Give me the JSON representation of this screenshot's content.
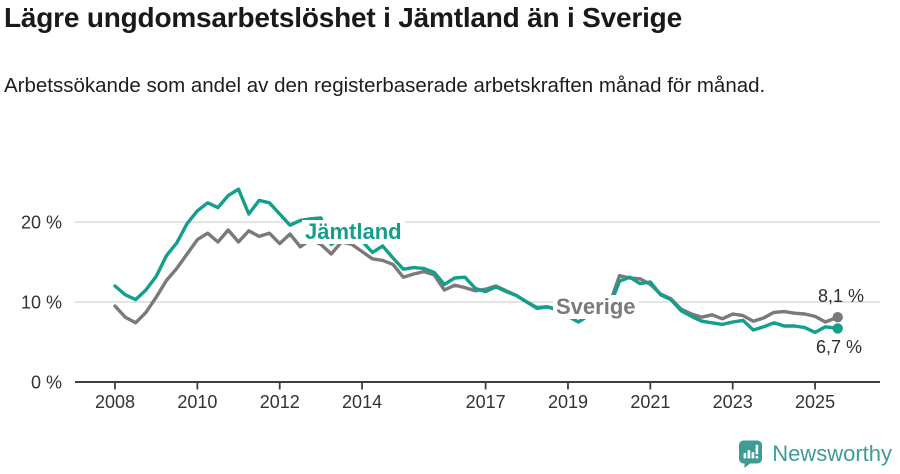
{
  "title": "Lägre ungdomsarbetslöshet i Jämtland än i Sverige",
  "subtitle": "Arbetssökande som andel av den registerbaserade arbetskraften månad för månad.",
  "footer": {
    "brand": "Newsworthy"
  },
  "colors": {
    "jamtland": "#149e8c",
    "sverige": "#7a7a7a",
    "grid": "#dbdbdb",
    "axis": "#3f3f3f",
    "tick_text": "#333333",
    "end_label_text": "#2e2e2e",
    "title_text": "#191919",
    "brand": "#3f9b95",
    "background": "#ffffff"
  },
  "chart_data": {
    "type": "line",
    "title": "Lägre ungdomsarbetslöshet i Jämtland än i Sverige",
    "xlabel": "",
    "ylabel": "",
    "grid": "horizontal",
    "legend_position": "inline-labels",
    "xlim": [
      2007.0,
      2026.6
    ],
    "ylim": [
      0,
      26.5
    ],
    "y_ticks": [
      "0 %",
      "10 %",
      "20 %"
    ],
    "y_tick_values": [
      0,
      10,
      20
    ],
    "x_tick_labels": [
      "2008",
      "2010",
      "2012",
      "2014",
      "2017",
      "2019",
      "2021",
      "2023",
      "2025"
    ],
    "x_tick_values": [
      2008,
      2010,
      2012,
      2014,
      2017,
      2019,
      2021,
      2023,
      2025
    ],
    "x": [
      2008,
      2008.25,
      2008.5,
      2008.75,
      2009,
      2009.25,
      2009.5,
      2009.75,
      2010,
      2010.25,
      2010.5,
      2010.75,
      2011,
      2011.25,
      2011.5,
      2011.75,
      2012,
      2012.25,
      2012.5,
      2012.75,
      2013,
      2013.25,
      2013.5,
      2013.75,
      2014,
      2014.25,
      2014.5,
      2014.75,
      2015,
      2015.25,
      2015.5,
      2015.75,
      2016,
      2016.25,
      2016.5,
      2016.75,
      2017,
      2017.25,
      2017.5,
      2017.75,
      2018,
      2018.25,
      2018.5,
      2018.75,
      2019,
      2019.25,
      2019.5,
      2019.75,
      2020,
      2020.25,
      2020.5,
      2020.75,
      2021,
      2021.25,
      2021.5,
      2021.75,
      2022,
      2022.25,
      2022.5,
      2022.75,
      2023,
      2023.25,
      2023.5,
      2023.75,
      2024,
      2024.25,
      2024.5,
      2024.75,
      2025,
      2025.25,
      2025.55
    ],
    "series": [
      {
        "name": "Jämtland",
        "color": "#149e8c",
        "end_label": "6,7 %",
        "end_value": 6.7,
        "values": [
          12.0,
          10.9,
          10.3,
          11.5,
          13.2,
          15.8,
          17.4,
          19.8,
          21.4,
          22.4,
          21.8,
          23.3,
          24.1,
          21.0,
          22.7,
          22.4,
          21.0,
          19.6,
          20.2,
          20.4,
          20.5,
          17.2,
          17.9,
          17.5,
          17.6,
          16.2,
          17.0,
          15.5,
          14.1,
          14.3,
          14.2,
          13.7,
          12.2,
          13.0,
          13.1,
          11.7,
          11.3,
          11.9,
          11.3,
          10.8,
          10.0,
          9.3,
          9.4,
          9.0,
          8.2,
          7.5,
          8.3,
          8.8,
          9.3,
          12.6,
          13.1,
          12.3,
          12.5,
          10.9,
          10.3,
          8.9,
          8.2,
          7.6,
          7.4,
          7.2,
          7.5,
          7.7,
          6.5,
          6.9,
          7.4,
          7.0,
          7.0,
          6.8,
          6.2,
          6.9,
          6.7
        ]
      },
      {
        "name": "Sverige",
        "color": "#7a7a7a",
        "end_label": "8,1 %",
        "end_value": 8.1,
        "values": [
          9.5,
          8.1,
          7.4,
          8.7,
          10.6,
          12.7,
          14.2,
          16.0,
          17.8,
          18.6,
          17.5,
          19.0,
          17.5,
          18.9,
          18.2,
          18.6,
          17.3,
          18.5,
          16.9,
          17.8,
          17.2,
          16.0,
          17.5,
          17.2,
          16.3,
          15.4,
          15.2,
          14.7,
          13.1,
          13.5,
          13.8,
          13.4,
          11.5,
          12.1,
          11.8,
          11.4,
          11.6,
          12.0,
          11.4,
          10.8,
          10.0,
          9.2,
          9.4,
          9.0,
          9.2,
          8.9,
          9.0,
          9.3,
          9.6,
          13.3,
          13.0,
          12.9,
          12.2,
          11.0,
          10.4,
          9.1,
          8.5,
          8.1,
          8.4,
          7.9,
          8.5,
          8.3,
          7.6,
          8.0,
          8.7,
          8.8,
          8.6,
          8.5,
          8.2,
          7.5,
          8.1
        ]
      }
    ]
  }
}
